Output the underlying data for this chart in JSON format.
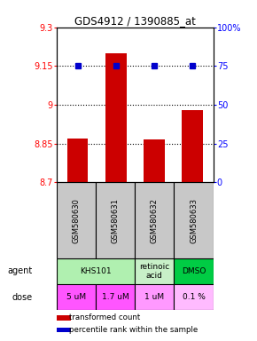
{
  "title": "GDS4912 / 1390885_at",
  "samples": [
    "GSM580630",
    "GSM580631",
    "GSM580632",
    "GSM580633"
  ],
  "bar_values": [
    8.87,
    9.2,
    8.865,
    8.98
  ],
  "dot_values": [
    75,
    75,
    75,
    75
  ],
  "ylim_left": [
    8.7,
    9.3
  ],
  "ylim_right": [
    0,
    100
  ],
  "yticks_left": [
    8.7,
    8.85,
    9.0,
    9.15,
    9.3
  ],
  "yticks_right": [
    0,
    25,
    50,
    75,
    100
  ],
  "ytick_labels_left": [
    "8.7",
    "8.85",
    "9",
    "9.15",
    "9.3"
  ],
  "ytick_labels_right": [
    "0",
    "25",
    "50",
    "75",
    "100%"
  ],
  "gridlines": [
    8.85,
    9.0,
    9.15
  ],
  "bar_color": "#CC0000",
  "dot_color": "#0000CC",
  "sample_bg": "#C8C8C8",
  "agent_layout": [
    {
      "label": "KHS101",
      "start": 0,
      "end": 2,
      "color": "#B0F0B0"
    },
    {
      "label": "retinoic\nacid",
      "start": 2,
      "end": 3,
      "color": "#C8F0C8"
    },
    {
      "label": "DMSO",
      "start": 3,
      "end": 4,
      "color": "#00CC44"
    }
  ],
  "dose_layout": [
    {
      "label": "5 uM",
      "start": 0,
      "end": 1,
      "color": "#FF55FF"
    },
    {
      "label": "1.7 uM",
      "start": 1,
      "end": 2,
      "color": "#FF55FF"
    },
    {
      "label": "1 uM",
      "start": 2,
      "end": 3,
      "color": "#FF99FF"
    },
    {
      "label": "0.1 %",
      "start": 3,
      "end": 4,
      "color": "#FFBBFF"
    }
  ],
  "legend_items": [
    {
      "color": "#CC0000",
      "label": "transformed count"
    },
    {
      "color": "#0000CC",
      "label": "percentile rank within the sample"
    }
  ]
}
